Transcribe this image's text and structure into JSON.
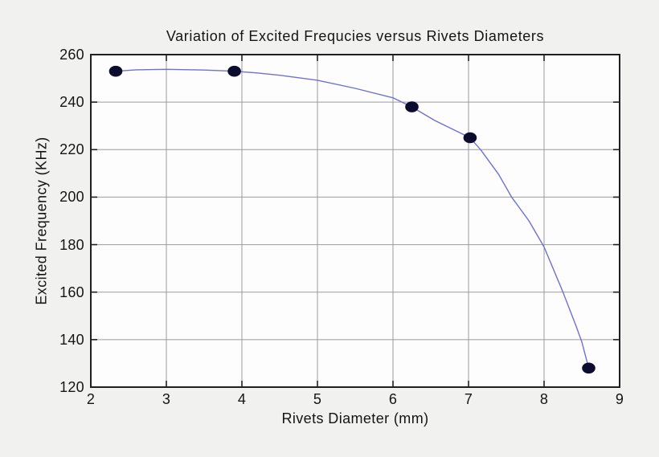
{
  "chart_data": {
    "type": "line",
    "title": "Variation of Excited Frequcies versus Rivets Diameters",
    "xlabel": "Rivets Diameter (mm)",
    "ylabel": "Excited Frequency (KHz)",
    "xlim": [
      2,
      9
    ],
    "ylim": [
      120,
      260
    ],
    "xticks": [
      2,
      3,
      4,
      5,
      6,
      7,
      8,
      9
    ],
    "yticks": [
      120,
      140,
      160,
      180,
      200,
      220,
      240,
      260
    ],
    "grid": true,
    "legend": "none",
    "series": [
      {
        "name": "Excited frequency vs rivet diameter",
        "marker_points": [
          [
            2.33,
            253
          ],
          [
            3.9,
            253
          ],
          [
            6.25,
            238
          ],
          [
            7.02,
            225
          ],
          [
            8.59,
            128
          ]
        ],
        "curve_samples": [
          [
            2.33,
            253
          ],
          [
            2.6,
            253.6
          ],
          [
            3.0,
            253.8
          ],
          [
            3.5,
            253.5
          ],
          [
            3.9,
            253
          ],
          [
            4.2,
            252.3
          ],
          [
            4.5,
            251.3
          ],
          [
            5.0,
            249.2
          ],
          [
            5.5,
            245.8
          ],
          [
            6.0,
            241.8
          ],
          [
            6.25,
            238
          ],
          [
            6.55,
            232.3
          ],
          [
            7.02,
            225
          ],
          [
            7.16,
            220
          ],
          [
            7.4,
            209.5
          ],
          [
            7.57,
            200
          ],
          [
            7.8,
            190
          ],
          [
            8.0,
            179
          ],
          [
            8.25,
            160
          ],
          [
            8.42,
            146
          ],
          [
            8.5,
            139
          ],
          [
            8.59,
            128
          ]
        ]
      }
    ],
    "colors": {
      "line": "#7070d0",
      "marker": "#0c0c2e",
      "grid": "#9b9b9b",
      "axis": "#1f1f1f",
      "figure_bg": "#f1f1f0",
      "plot_bg": "#fdfdfd",
      "text": "#151515"
    }
  }
}
